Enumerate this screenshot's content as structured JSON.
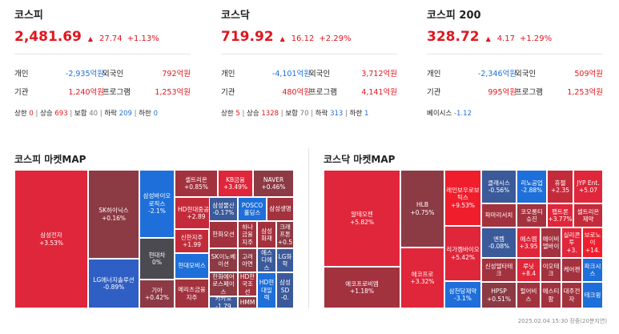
{
  "indices": [
    {
      "name": "코스피",
      "value": "2,481.69",
      "change": "27.74",
      "pct": "+1.13%",
      "r1": [
        {
          "l": "개인",
          "v": "-2,935억원",
          "c": "blue"
        },
        {
          "l": "외국인",
          "v": "792억원",
          "c": "red"
        }
      ],
      "r2": [
        {
          "l": "기관",
          "v": "1,240억원",
          "c": "red"
        },
        {
          "l": "프로그램",
          "v": "1,253억원",
          "c": "red"
        }
      ],
      "breadth": [
        {
          "l": "상한",
          "v": "0",
          "c": "red"
        },
        {
          "l": "상승",
          "v": "693",
          "c": "red"
        },
        {
          "l": "보합",
          "v": "40",
          "c": "gray"
        },
        {
          "l": "하락",
          "v": "209",
          "c": "blue"
        },
        {
          "l": "하한",
          "v": "0",
          "c": "blue"
        }
      ]
    },
    {
      "name": "코스닥",
      "value": "719.92",
      "change": "16.12",
      "pct": "+2.29%",
      "r1": [
        {
          "l": "개인",
          "v": "-4,101억원",
          "c": "blue"
        },
        {
          "l": "외국인",
          "v": "3,712억원",
          "c": "red"
        }
      ],
      "r2": [
        {
          "l": "기관",
          "v": "480억원",
          "c": "red"
        },
        {
          "l": "프로그램",
          "v": "4,141억원",
          "c": "red"
        }
      ],
      "breadth": [
        {
          "l": "상한",
          "v": "5",
          "c": "red"
        },
        {
          "l": "상승",
          "v": "1328",
          "c": "red"
        },
        {
          "l": "보합",
          "v": "70",
          "c": "gray"
        },
        {
          "l": "하락",
          "v": "313",
          "c": "blue"
        },
        {
          "l": "하한",
          "v": "1",
          "c": "blue"
        }
      ]
    },
    {
      "name": "코스피 200",
      "value": "328.72",
      "change": "4.17",
      "pct": "+1.29%",
      "r1": [
        {
          "l": "개인",
          "v": "-2,346억원",
          "c": "blue"
        },
        {
          "l": "외국인",
          "v": "509억원",
          "c": "red"
        }
      ],
      "r2": [
        {
          "l": "기관",
          "v": "995억원",
          "c": "red"
        },
        {
          "l": "프로그램",
          "v": "1,253억원",
          "c": "red"
        }
      ],
      "basis": {
        "l": "베이시스",
        "v": "-1.12",
        "c": "blue"
      }
    }
  ],
  "kospi_map_title": "코스피 마켓MAP",
  "kosdaq_map_title": "코스닥 마켓MAP",
  "kospi_cells": [
    {
      "n": "삼성전자",
      "p": "+3.53%",
      "col": "#e0263a"
    },
    {
      "n": "SK하이닉스",
      "p": "+0.16%",
      "col": "#8c3a44"
    },
    {
      "n": "LG에너지솔루션",
      "p": "-0.89%",
      "col": "#2f5fc4"
    },
    {
      "n": "삼성바이오로직스",
      "p": "-2.1%",
      "col": "#1e6fd9"
    },
    {
      "n": "현대차",
      "p": "0%",
      "col": "#4a4a50"
    },
    {
      "n": "기아",
      "p": "+0.42%",
      "col": "#8c3a44"
    },
    {
      "n": "셀트리온",
      "p": "+0.85%",
      "col": "#a3323f"
    },
    {
      "n": "KB금융",
      "p": "+3.49%",
      "col": "#e0263a"
    },
    {
      "n": "NAVER",
      "p": "+0.46%",
      "col": "#8c3a44"
    },
    {
      "n": "HD현대중공업",
      "p": "+2.89",
      "col": "#c42b3a"
    },
    {
      "n": "삼성물산",
      "p": "-0.17%",
      "col": "#3b5a9a"
    },
    {
      "n": "POSCO홀딩스",
      "p": "",
      "col": "#1e6fd9"
    },
    {
      "n": "삼성생명",
      "p": "",
      "col": "#a3323f"
    },
    {
      "n": "한화오션",
      "p": "",
      "col": "#a3323f"
    },
    {
      "n": "하나금융지주",
      "p": "",
      "col": "#a3323f"
    },
    {
      "n": "삼성화재",
      "p": "",
      "col": "#a3323f"
    },
    {
      "n": "크래프톤",
      "p": "+0.5",
      "col": "#8c3a44"
    },
    {
      "n": "신한지주",
      "p": "+1.99",
      "col": "#c42b3a"
    },
    {
      "n": "SK이노베이션",
      "p": "",
      "col": "#8c3a44"
    },
    {
      "n": "고려아연",
      "p": "",
      "col": "#8c3a44"
    },
    {
      "n": "삼성에스디에스",
      "p": "-0.9",
      "col": "#3b5a9a"
    },
    {
      "n": "LG화학",
      "p": "",
      "col": "#3b5a9a"
    },
    {
      "n": "현대모비스",
      "p": "",
      "col": "#1e6fd9"
    },
    {
      "n": "한화에어로스페이스",
      "p": "",
      "col": "#8c3a44"
    },
    {
      "n": "HD한국조선",
      "p": "",
      "col": "#a3323f"
    },
    {
      "n": "두산에너빌리",
      "p": "",
      "col": "#a3323f"
    },
    {
      "n": "메리츠금융지주",
      "p": "",
      "col": "#a3323f"
    },
    {
      "n": "카카오",
      "p": "-1.79",
      "col": "#3b5a9a"
    },
    {
      "n": "HMM",
      "p": "",
      "col": "#8c3a44"
    },
    {
      "n": "HD현대일렉",
      "p": "",
      "col": "#1e6fd9"
    },
    {
      "n": "삼성SD",
      "p": "-0.",
      "col": "#3b5a9a"
    }
  ],
  "kosdaq_cells": [
    {
      "n": "알테오젠",
      "p": "+5.82%",
      "col": "#e0263a"
    },
    {
      "n": "에코프로비엠",
      "p": "+1.18%",
      "col": "#a3323f"
    },
    {
      "n": "HLB",
      "p": "+0.75%",
      "col": "#8c3a44"
    },
    {
      "n": "에코프로",
      "p": "+3.32%",
      "col": "#e0263a"
    },
    {
      "n": "레인보우로보틱스",
      "p": "+9.53%",
      "col": "#f01d2c"
    },
    {
      "n": "리가켐바이오",
      "p": "+5.42%",
      "col": "#e0263a"
    },
    {
      "n": "삼천당제약",
      "p": "-3.1%",
      "col": "#1e6fd9"
    },
    {
      "n": "클래시스",
      "p": "-0.56%",
      "col": "#3b5a9a"
    },
    {
      "n": "리노공업",
      "p": "-2.88%",
      "col": "#1e6fd9"
    },
    {
      "n": "휴젤",
      "p": "+2.35",
      "col": "#c42b3a"
    },
    {
      "n": "JYP Ent.",
      "p": "+5.07",
      "col": "#e0263a"
    },
    {
      "n": "파마리서치",
      "p": "",
      "col": "#a3323f"
    },
    {
      "n": "코오롱티슈진",
      "p": "",
      "col": "#a3323f"
    },
    {
      "n": "펩트론",
      "p": "+3.77%",
      "col": "#e0263a"
    },
    {
      "n": "셀트리온제약",
      "p": "",
      "col": "#c42b3a"
    },
    {
      "n": "엔켐",
      "p": "-0.08%",
      "col": "#3b5a9a"
    },
    {
      "n": "에스엠",
      "p": "+3.95",
      "col": "#e0263a"
    },
    {
      "n": "에이비엘바이",
      "p": "",
      "col": "#a3323f"
    },
    {
      "n": "실리콘투",
      "p": "+3.",
      "col": "#e0263a"
    },
    {
      "n": "보로노이",
      "p": "+14.",
      "col": "#f01d2c"
    },
    {
      "n": "신성델타테크",
      "p": "",
      "col": "#a3323f"
    },
    {
      "n": "루닛",
      "p": "+8.4",
      "col": "#e0263a"
    },
    {
      "n": "이오테크",
      "p": "",
      "col": "#a3323f"
    },
    {
      "n": "케어젠",
      "p": "",
      "col": "#a3323f"
    },
    {
      "n": "파크시스",
      "p": "",
      "col": "#1e6fd9"
    },
    {
      "n": "HPSP",
      "p": "+0.51%",
      "col": "#8c3a44"
    },
    {
      "n": "펄어비스",
      "p": "",
      "col": "#a3323f"
    },
    {
      "n": "에스티팜",
      "p": "",
      "col": "#a3323f"
    },
    {
      "n": "대주전자",
      "p": "",
      "col": "#a3323f"
    },
    {
      "n": "테크윙",
      "p": "",
      "col": "#1e6fd9"
    }
  ],
  "footer": "2025.02.04 15:30 장중(20분지연)"
}
